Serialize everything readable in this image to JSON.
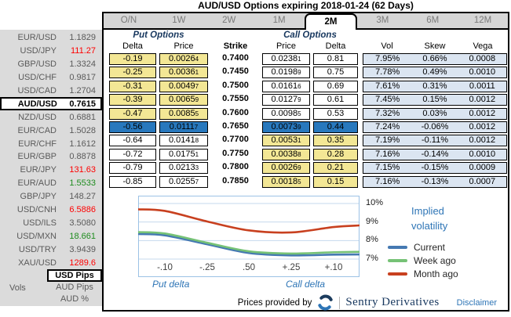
{
  "title": "AUD/USD Options expiring 2018-01-24 (62 Days)",
  "tabs": {
    "items": [
      "O/N",
      "1W",
      "2W",
      "1M",
      "2M",
      "3M",
      "6M",
      "12M"
    ],
    "active": "2M"
  },
  "sidebar": {
    "pairs": [
      {
        "name": "EUR/USD",
        "value": "1.1829",
        "state": "flat"
      },
      {
        "name": "USD/JPY",
        "value": "111.27",
        "state": "down"
      },
      {
        "name": "GBP/USD",
        "value": "1.3324",
        "state": "flat"
      },
      {
        "name": "USD/CHF",
        "value": "0.9817",
        "state": "flat"
      },
      {
        "name": "USD/CAD",
        "value": "1.2704",
        "state": "flat"
      },
      {
        "name": "AUD/USD",
        "value": "0.7615",
        "state": "selected"
      },
      {
        "name": "NZD/USD",
        "value": "0.6881",
        "state": "flat"
      },
      {
        "name": "EUR/CAD",
        "value": "1.5028",
        "state": "flat"
      },
      {
        "name": "EUR/CHF",
        "value": "1.1612",
        "state": "flat"
      },
      {
        "name": "EUR/GBP",
        "value": "0.8878",
        "state": "flat"
      },
      {
        "name": "EUR/JPY",
        "value": "131.63",
        "state": "down"
      },
      {
        "name": "EUR/AUD",
        "value": "1.5533",
        "state": "up"
      },
      {
        "name": "GBP/JPY",
        "value": "148.27",
        "state": "flat"
      },
      {
        "name": "USD/CNH",
        "value": "6.5886",
        "state": "down"
      },
      {
        "name": "USD/ILS",
        "value": "3.5080",
        "state": "flat"
      },
      {
        "name": "USD/MXN",
        "value": "18.661",
        "state": "up"
      },
      {
        "name": "USD/TRY",
        "value": "3.9439",
        "state": "flat"
      },
      {
        "name": "XAU/USD",
        "value": "1289.6",
        "state": "down"
      }
    ],
    "vols_label": "Vols",
    "vol_modes": [
      {
        "label": "USD Pips",
        "selected": true
      },
      {
        "label": "AUD Pips",
        "selected": false
      },
      {
        "label": "AUD %",
        "selected": false
      }
    ]
  },
  "options_table": {
    "put_group_label": "Put Options",
    "call_group_label": "Call Options",
    "headers": {
      "put_delta": "Delta",
      "put_price": "Price",
      "strike": "Strike",
      "call_price": "Price",
      "call_delta": "Delta",
      "vol": "Vol",
      "skew": "Skew",
      "vega": "Vega"
    },
    "rows": [
      {
        "put_delta": "-0.19",
        "put_price": [
          "0.0026",
          "4"
        ],
        "strike": "0.7400",
        "call_price": [
          "0.0238",
          "1"
        ],
        "call_delta": "0.81",
        "vol": "7.95%",
        "skew": "0.66%",
        "vega": "0.0008",
        "zone": "puts"
      },
      {
        "put_delta": "-0.25",
        "put_price": [
          "0.0036",
          "1"
        ],
        "strike": "0.7450",
        "call_price": [
          "0.0198",
          "9"
        ],
        "call_delta": "0.75",
        "vol": "7.78%",
        "skew": "0.49%",
        "vega": "0.0010",
        "zone": "puts"
      },
      {
        "put_delta": "-0.31",
        "put_price": [
          "0.0049",
          "7"
        ],
        "strike": "0.7500",
        "call_price": [
          "0.0161",
          "6"
        ],
        "call_delta": "0.69",
        "vol": "7.61%",
        "skew": "0.31%",
        "vega": "0.0011",
        "zone": "puts"
      },
      {
        "put_delta": "-0.39",
        "put_price": [
          "0.0065",
          "9"
        ],
        "strike": "0.7550",
        "call_price": [
          "0.0127",
          "9"
        ],
        "call_delta": "0.61",
        "vol": "7.45%",
        "skew": "0.15%",
        "vega": "0.0012",
        "zone": "puts"
      },
      {
        "put_delta": "-0.47",
        "put_price": [
          "0.0085",
          "5"
        ],
        "strike": "0.7600",
        "call_price": [
          "0.0098",
          "5"
        ],
        "call_delta": "0.53",
        "vol": "7.32%",
        "skew": "0.03%",
        "vega": "0.0012",
        "zone": "puts"
      },
      {
        "put_delta": "-0.56",
        "put_price": [
          "0.0111",
          "7"
        ],
        "strike": "0.7650",
        "call_price": [
          "0.0073",
          "9"
        ],
        "call_delta": "0.44",
        "vol": "7.24%",
        "skew": "-0.06%",
        "vega": "0.0012",
        "zone": "atm"
      },
      {
        "put_delta": "-0.64",
        "put_price": [
          "0.0141",
          "8"
        ],
        "strike": "0.7700",
        "call_price": [
          "0.0053",
          "1"
        ],
        "call_delta": "0.35",
        "vol": "7.19%",
        "skew": "-0.11%",
        "vega": "0.0012",
        "zone": "calls"
      },
      {
        "put_delta": "-0.72",
        "put_price": [
          "0.0175",
          "1"
        ],
        "strike": "0.7750",
        "call_price": [
          "0.0038",
          "8"
        ],
        "call_delta": "0.28",
        "vol": "7.16%",
        "skew": "-0.14%",
        "vega": "0.0010",
        "zone": "calls"
      },
      {
        "put_delta": "-0.79",
        "put_price": [
          "0.0213",
          "3"
        ],
        "strike": "0.7800",
        "call_price": [
          "0.0026",
          "9"
        ],
        "call_delta": "0.21",
        "vol": "7.15%",
        "skew": "-0.15%",
        "vega": "0.0009",
        "zone": "calls"
      },
      {
        "put_delta": "-0.85",
        "put_price": [
          "0.0255",
          "7"
        ],
        "strike": "0.7850",
        "call_price": [
          "0.0018",
          "5"
        ],
        "call_delta": "0.15",
        "vol": "7.16%",
        "skew": "-0.13%",
        "vega": "0.0007",
        "zone": "calls"
      }
    ]
  },
  "chart_data": {
    "type": "line",
    "title": "Implied volatility",
    "x_ticks": [
      "-.10",
      "-.25",
      ".50",
      "+.25",
      "+.10"
    ],
    "x_label_left": "Put delta",
    "x_label_right": "Call delta",
    "y_ticks": [
      {
        "label": "10%",
        "value": 10
      },
      {
        "label": "9%",
        "value": 9
      },
      {
        "label": "8%",
        "value": 8
      },
      {
        "label": "7%",
        "value": 7
      }
    ],
    "ylim": [
      6.1,
      10.42
    ],
    "grid": true,
    "legend_position": "right",
    "series": [
      {
        "name": "Current",
        "color": "#4579B2",
        "values": [
          8.28,
          7.8,
          7.33,
          7.2,
          7.24
        ]
      },
      {
        "name": "Week ago",
        "color": "#76C276",
        "values": [
          8.38,
          7.88,
          7.42,
          7.3,
          7.37
        ]
      },
      {
        "name": "Month ago",
        "color": "#C8401F",
        "values": [
          9.6,
          9.03,
          8.55,
          8.44,
          8.73
        ]
      }
    ]
  },
  "footer": {
    "prefix": "Prices provided by",
    "provider": "Sentry Derivatives",
    "disclaimer": "Disclaimer"
  },
  "colors": {
    "atm_row": "#2878BD",
    "itm_cell": "#F3E795",
    "vol_bg": "#DBE5F1",
    "header_navy": "#17375E",
    "link_blue": "#2E75B6",
    "down_red": "#FE0000",
    "up_green": "#1E8C1E"
  }
}
